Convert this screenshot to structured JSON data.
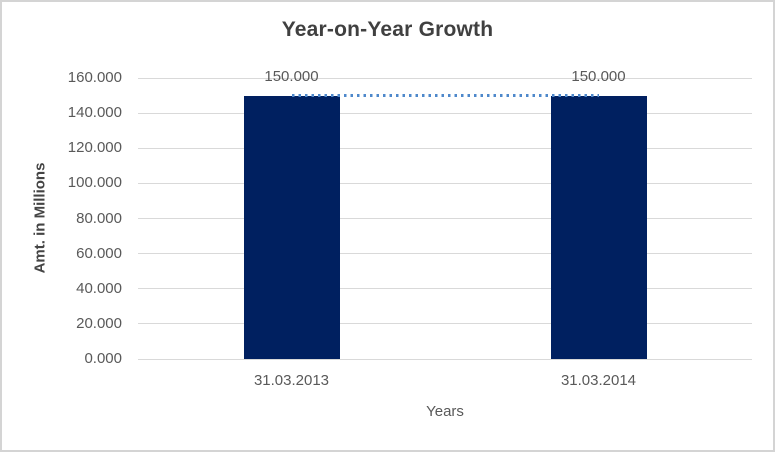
{
  "chart_data": {
    "type": "bar",
    "title": "Year-on-Year Growth",
    "categories": [
      "31.03.2013",
      "31.03.2014"
    ],
    "series": [
      {
        "values": [
          150.0,
          150.0
        ]
      }
    ],
    "data_labels": [
      "150.000",
      "150.000"
    ],
    "xlabel": "Years",
    "ylabel": "Amt. in Millions",
    "ylim": [
      0,
      160
    ],
    "ytick_step": 20,
    "ytick_labels": [
      "0.000",
      "20.000",
      "40.000",
      "60.000",
      "80.000",
      "100.000",
      "120.000",
      "140.000",
      "160.000"
    ],
    "grid": true,
    "legend": "none",
    "trendline": {
      "type": "linear",
      "style": "dotted",
      "values": [
        150.0,
        150.0
      ]
    },
    "colors": {
      "bar": "#002060",
      "trendline": "#4e88cb",
      "gridline": "#d9d9d9",
      "title_text": "#404040",
      "axis_text": "#595959",
      "frame_border": "#d4d4d4",
      "background": "#ffffff"
    }
  }
}
